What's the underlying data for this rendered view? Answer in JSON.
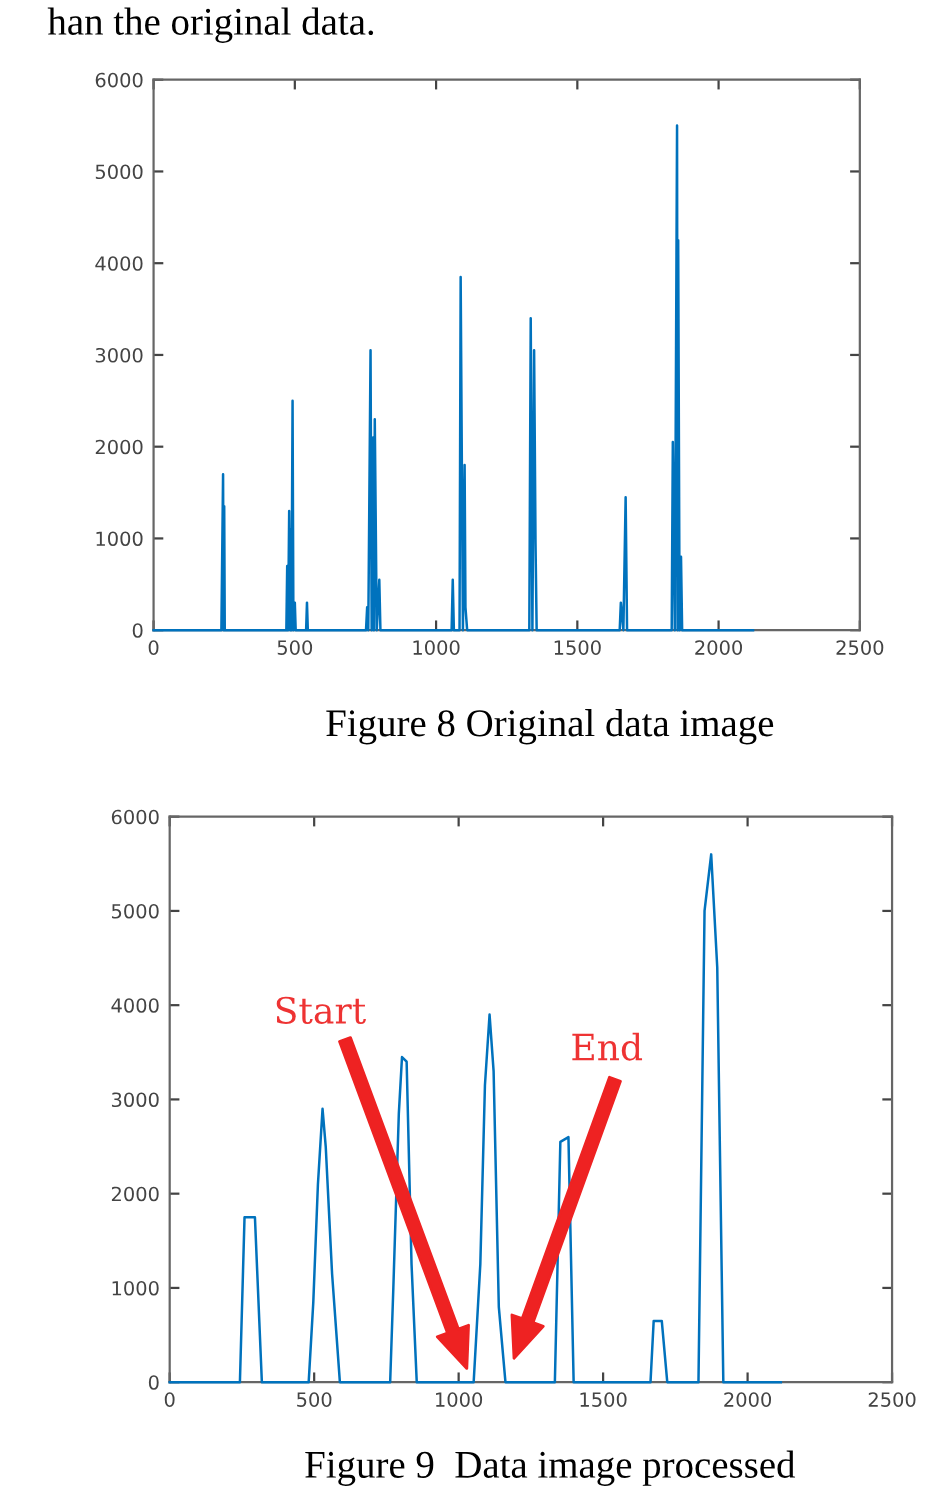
{
  "chart_data": [
    {
      "type": "line",
      "title": "Figure 8 Original data image",
      "annotations": [
        "han the original data."
      ],
      "series": [
        {
          "color": "#0072bd",
          "x": [
            0,
            240,
            246,
            248,
            250,
            252,
            470,
            473,
            476,
            480,
            484,
            486,
            488,
            492,
            495,
            500,
            503,
            507,
            510,
            540,
            543,
            546,
            752,
            756,
            760,
            768,
            772,
            777,
            780,
            783,
            790,
            799,
            803,
            1055,
            1059,
            1063,
            1083,
            1087,
            1095,
            1101,
            1104,
            1110,
            1330,
            1335,
            1341,
            1347,
            1352,
            1356,
            1360,
            1650,
            1654,
            1663,
            1671,
            1676,
            1834,
            1838,
            1845,
            1853,
            1855,
            1857,
            1862,
            1867,
            1871,
            2122
          ],
          "values": [
            0,
            0,
            1700,
            0,
            1350,
            0,
            0,
            700,
            0,
            1300,
            0,
            1100,
            0,
            2500,
            0,
            300,
            0,
            0,
            0,
            0,
            300,
            0,
            0,
            250,
            0,
            3050,
            0,
            2100,
            0,
            2300,
            0,
            550,
            0,
            0,
            550,
            0,
            0,
            3850,
            0,
            1800,
            250,
            0,
            0,
            3400,
            0,
            3050,
            950,
            0,
            0,
            0,
            300,
            0,
            1450,
            0,
            0,
            2050,
            0,
            5500,
            0,
            4250,
            0,
            800,
            0,
            0
          ]
        }
      ],
      "xlim": [
        0,
        2500
      ],
      "ylim": [
        0,
        6000
      ],
      "xticks": [
        0,
        500,
        1000,
        1500,
        2000,
        2500
      ],
      "yticks": [
        0,
        1000,
        2000,
        3000,
        4000,
        5000,
        6000
      ],
      "grid": false,
      "legend": false
    },
    {
      "type": "line",
      "title": "Figure 9  Data image processed",
      "annotations": [
        "Start",
        "End"
      ],
      "series": [
        {
          "color": "#0072bd",
          "x": [
            0,
            243,
            259,
            295,
            319,
            481,
            497,
            513,
            529,
            540,
            562,
            589,
            763,
            774,
            793,
            804,
            820,
            837,
            855,
            1052,
            1075,
            1091,
            1107,
            1121,
            1139,
            1162,
            1333,
            1352,
            1380,
            1398,
            1664,
            1675,
            1703,
            1722,
            1830,
            1851,
            1874,
            1895,
            1916,
            2115
          ],
          "values": [
            0,
            0,
            1750,
            1750,
            0,
            0,
            850,
            2100,
            2900,
            2500,
            1150,
            0,
            0,
            1000,
            2850,
            3450,
            3400,
            1250,
            0,
            0,
            1250,
            3150,
            3900,
            3300,
            800,
            0,
            0,
            2550,
            2600,
            0,
            0,
            650,
            650,
            0,
            0,
            5000,
            5600,
            4400,
            0,
            0
          ]
        }
      ],
      "xlim": [
        0,
        2500
      ],
      "ylim": [
        0,
        6000
      ],
      "xticks": [
        0,
        500,
        1000,
        1500,
        2000,
        2500
      ],
      "yticks": [
        0,
        1000,
        2000,
        3000,
        4000,
        5000,
        6000
      ],
      "grid": false,
      "legend": false
    }
  ]
}
